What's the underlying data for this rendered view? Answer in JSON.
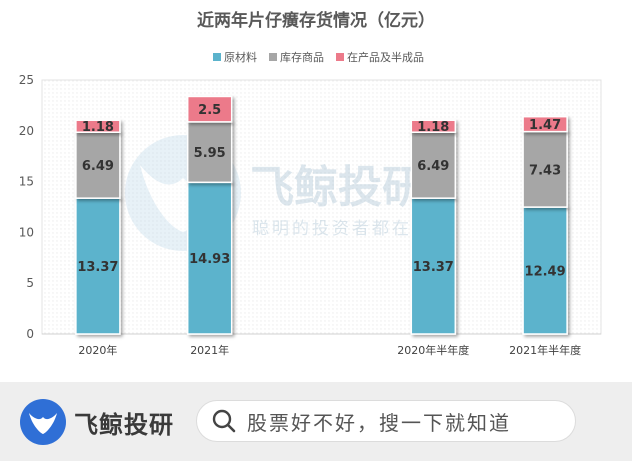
{
  "chart_data": {
    "type": "bar",
    "stacked": true,
    "title": "近两年片仔癀存货情况（亿元）",
    "categories": [
      "2020年",
      "2021年",
      "",
      "2020年半年度",
      "2021年半年度"
    ],
    "series": [
      {
        "name": "原材料",
        "color": "#5bb3cc",
        "values": [
          13.37,
          14.93,
          null,
          13.37,
          12.49
        ]
      },
      {
        "name": "库存商品",
        "color": "#a6a6a6",
        "values": [
          6.49,
          5.95,
          null,
          6.49,
          7.43
        ]
      },
      {
        "name": "在产品及半成品",
        "color": "#ec7a8a",
        "values": [
          1.18,
          2.5,
          null,
          1.18,
          1.47
        ]
      }
    ],
    "data_labels": [
      [
        "13.37",
        "14.93",
        "",
        "13.37",
        "12.49"
      ],
      [
        "6.49",
        "5.95",
        "",
        "6.49",
        "7.43"
      ],
      [
        "1.18",
        "2.5",
        "",
        "1.18",
        "1.47"
      ]
    ],
    "ylim": [
      0,
      25
    ],
    "yticks": [
      "0",
      "5",
      "10",
      "15",
      "20",
      "25"
    ],
    "legend_position": "top",
    "grid": false
  },
  "watermark": {
    "brand": "飞鲸投研",
    "slogan": "聪明的投资者都在关注"
  },
  "footer": {
    "brand_name": "飞鲸投研",
    "search_placeholder": "股票好不好，搜一下就知道"
  }
}
